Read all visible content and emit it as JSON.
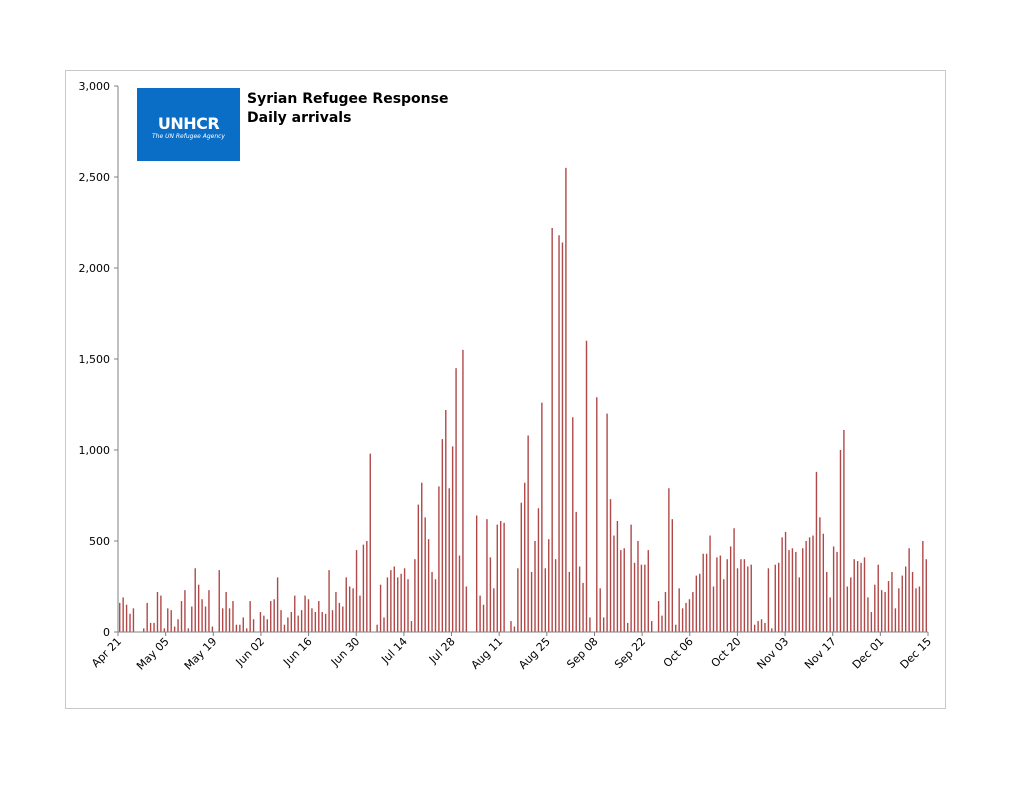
{
  "logo": {
    "name": "UNHCR",
    "tagline": "The UN Refugee Agency"
  },
  "colors": {
    "bar": "#b04848",
    "axis": "#808080",
    "logo_bg": "#0a6ec7"
  },
  "chart_data": {
    "type": "bar",
    "title": "Syrian Refugee Response",
    "subtitle": "Daily arrivals",
    "xlabel": "",
    "ylabel": "",
    "ylim": [
      0,
      3000
    ],
    "yticks": [
      0,
      500,
      1000,
      1500,
      2000,
      2500,
      3000
    ],
    "ytick_labels": [
      "0",
      "500",
      "1,000",
      "1,500",
      "2,000",
      "2,500",
      "3,000"
    ],
    "xtick_labels": [
      "Apr 21",
      "May 05",
      "May 19",
      "Jun 02",
      "Jun 16",
      "Jun 30",
      "Jul 14",
      "Jul 28",
      "Aug 11",
      "Aug 25",
      "Sep 08",
      "Sep 22",
      "Oct 06",
      "Oct 20",
      "Nov 03",
      "Nov 17",
      "Dec 01",
      "Dec 15"
    ],
    "grid": false,
    "legend": "none",
    "series": [
      {
        "values": [
          160,
          190,
          150,
          100,
          130,
          0,
          0,
          20,
          160,
          50,
          50,
          220,
          200,
          20,
          130,
          120,
          30,
          70,
          170,
          230,
          20,
          140,
          350,
          260,
          180,
          140,
          230,
          30,
          0,
          340,
          130,
          220,
          130,
          170,
          40,
          40,
          80,
          20,
          170,
          70,
          0,
          110,
          90,
          70,
          170,
          180,
          300,
          120,
          40,
          80,
          110,
          200,
          90,
          120,
          200,
          180,
          130,
          110,
          170,
          110,
          100,
          340,
          120,
          220,
          160,
          140,
          300,
          250,
          240,
          450,
          200,
          480,
          500,
          980,
          0,
          40,
          260,
          80,
          300,
          340,
          360,
          300,
          320,
          350,
          290,
          60,
          400,
          700,
          820,
          630,
          510,
          330,
          290,
          800,
          1060,
          1220,
          790,
          1020,
          1450,
          420,
          1550,
          250,
          0,
          0,
          640,
          200,
          150,
          620,
          410,
          240,
          590,
          610,
          600,
          0,
          60,
          30,
          350,
          710,
          820,
          1080,
          330,
          500,
          680,
          1260,
          350,
          510,
          2220,
          400,
          2180,
          2140,
          2550,
          330,
          1180,
          660,
          360,
          270,
          1600,
          80,
          0,
          1290,
          240,
          80,
          1200,
          730,
          530,
          610,
          450,
          460,
          50,
          590,
          380,
          500,
          370,
          370,
          450,
          60,
          0,
          170,
          90,
          220,
          790,
          620,
          40,
          240,
          130,
          160,
          180,
          220,
          310,
          320,
          430,
          430,
          530,
          250,
          410,
          420,
          290,
          400,
          470,
          570,
          350,
          400,
          400,
          360,
          370,
          40,
          60,
          70,
          50,
          350,
          20,
          370,
          380,
          520,
          550,
          450,
          460,
          440,
          300,
          460,
          500,
          520,
          530,
          880,
          630,
          540,
          330,
          190,
          470,
          440,
          1000,
          1110,
          250,
          300,
          400,
          390,
          380,
          410,
          190,
          110,
          260,
          370,
          230,
          220,
          280,
          330,
          130,
          240,
          310,
          360,
          460,
          330,
          240,
          250,
          500,
          400
        ]
      }
    ]
  }
}
